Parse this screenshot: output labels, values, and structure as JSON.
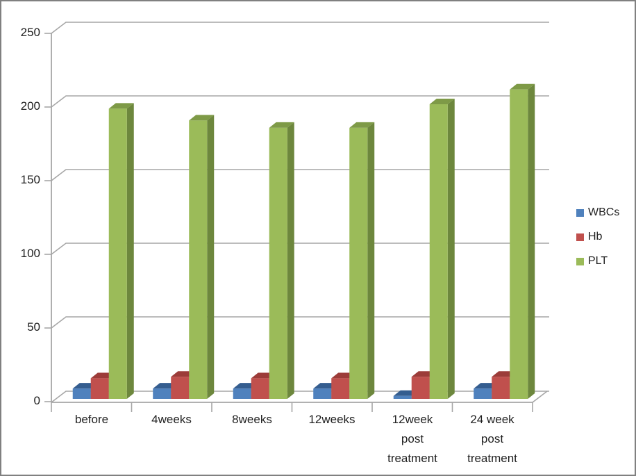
{
  "chart_data": {
    "type": "bar",
    "style": "3d-clustered-column",
    "title": "",
    "xlabel": "",
    "ylabel": "",
    "categories": [
      "before",
      "4weeks",
      "8weeks",
      "12weeks",
      "12week post treatment",
      "24 week post treatment"
    ],
    "series": [
      {
        "name": "WBCs",
        "color": "#4f81bd",
        "top_color": "#345d8f",
        "side_color": "#2e4f7d",
        "values": [
          7,
          7,
          7,
          7,
          2,
          7
        ]
      },
      {
        "name": "Hb",
        "color": "#c0504d",
        "top_color": "#9c3c39",
        "side_color": "#8b3330",
        "values": [
          14,
          15,
          14,
          14,
          15,
          15
        ]
      },
      {
        "name": "PLT",
        "color": "#9bbb59",
        "top_color": "#7e9a47",
        "side_color": "#6d873d",
        "values": [
          197,
          189,
          184,
          184,
          200,
          210
        ]
      }
    ],
    "ylim": [
      0,
      250
    ],
    "yticks": [
      0,
      50,
      100,
      150,
      200,
      250
    ],
    "grid": true,
    "legend_position": "right",
    "gridline_color": "#a6a6a6",
    "axis_color": "#a6a6a6",
    "text_color": "#1f1f1f",
    "background": "#ffffff",
    "border_color": "#808080"
  }
}
